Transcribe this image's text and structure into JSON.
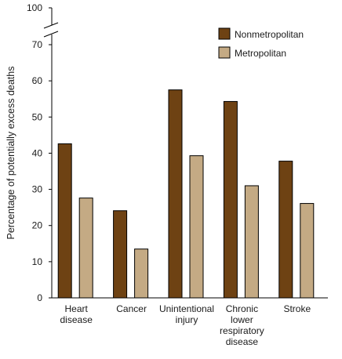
{
  "chart_data": {
    "type": "bar",
    "title": "",
    "xlabel": "",
    "ylabel": "Percentage of potentially excess deaths",
    "categories": [
      [
        "Heart",
        "disease"
      ],
      [
        "Cancer"
      ],
      [
        "Unintentional",
        "injury"
      ],
      [
        "Chronic",
        "lower",
        "respiratory",
        "disease"
      ],
      [
        "Stroke"
      ]
    ],
    "series": [
      {
        "name": "Nonmetropolitan",
        "color": "#6e4213",
        "values": [
          42.6,
          24.1,
          57.5,
          54.3,
          37.8
        ]
      },
      {
        "name": "Metropolitan",
        "color": "#c4aa84",
        "values": [
          27.6,
          13.5,
          39.3,
          31.0,
          26.1
        ]
      }
    ],
    "ylim": [
      0,
      100
    ],
    "axis_break": [
      70,
      100
    ],
    "yticks": [
      0,
      10,
      20,
      30,
      40,
      50,
      60,
      70,
      100
    ],
    "grid": false,
    "legend": "top-right"
  }
}
